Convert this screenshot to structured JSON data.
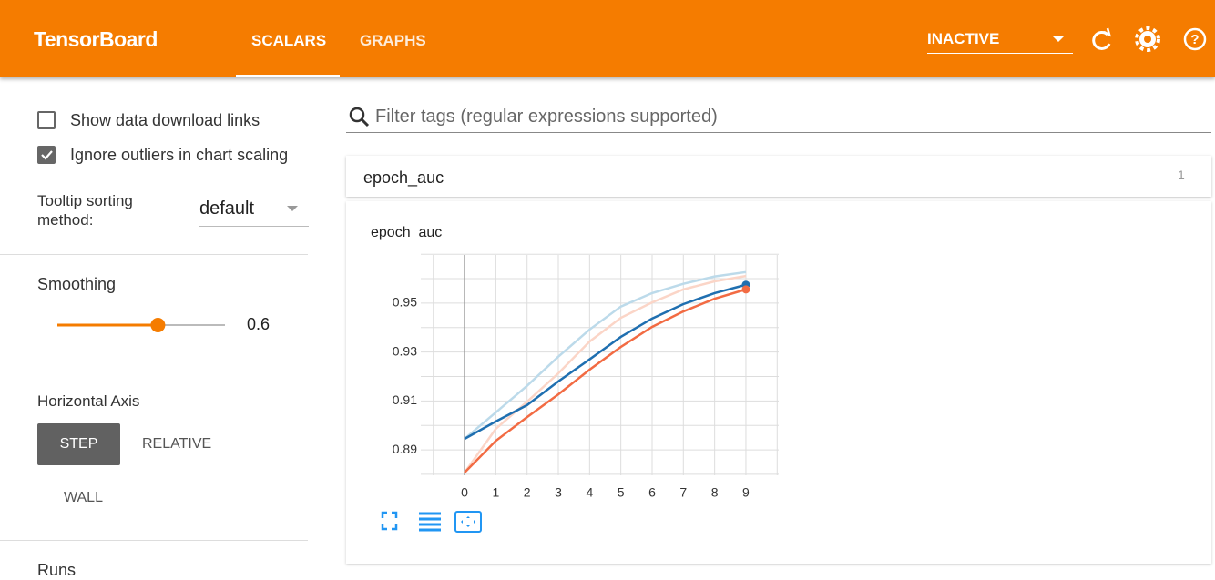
{
  "header": {
    "brand": "TensorBoard",
    "tabs": [
      "SCALARS",
      "GRAPHS"
    ],
    "status": "INACTIVE"
  },
  "sidebar": {
    "download_links": "Show data download links",
    "ignore_outliers": "Ignore outliers in chart scaling",
    "tooltip_label": "Tooltip sorting method:",
    "tooltip_value": "default",
    "smoothing_label": "Smoothing",
    "smoothing": 0.6,
    "axis_label": "Horizontal Axis",
    "axis_options": [
      "STEP",
      "RELATIVE",
      "WALL"
    ],
    "runs_label": "Runs"
  },
  "filter": {
    "placeholder": "Filter tags (regular expressions supported)"
  },
  "card": {
    "title": "epoch_auc",
    "count": 1
  },
  "chart_data": {
    "type": "line",
    "title": "epoch_auc",
    "x": [
      0,
      1,
      2,
      3,
      4,
      5,
      6,
      7,
      8,
      9
    ],
    "series": [
      {
        "color": "#bcdaea",
        "values": [
          0.8945,
          0.9053,
          0.9162,
          0.9281,
          0.9392,
          0.9486,
          0.9541,
          0.9579,
          0.9609,
          0.9627
        ]
      },
      {
        "color": "#fbd5c7",
        "values": [
          0.8807,
          0.8986,
          0.9097,
          0.9213,
          0.9343,
          0.944,
          0.9503,
          0.9556,
          0.9589,
          0.9611
        ]
      },
      {
        "color": "#1f6fb0",
        "values": [
          0.8945,
          0.9016,
          0.9083,
          0.918,
          0.927,
          0.9362,
          0.9437,
          0.9496,
          0.9541,
          0.9575
        ]
      },
      {
        "color": "#f26b43",
        "values": [
          0.8807,
          0.8937,
          0.9034,
          0.9127,
          0.9228,
          0.9321,
          0.9403,
          0.9466,
          0.9518,
          0.9556
        ]
      }
    ],
    "xlim": [
      -1.4,
      10.05
    ],
    "ylim": [
      0.8796,
      0.9697
    ],
    "xticks": [
      0,
      1,
      2,
      3,
      4,
      5,
      6,
      7,
      8,
      9
    ],
    "yticks": [
      0.89,
      0.91,
      0.93,
      0.95
    ],
    "xgrid": [
      -1,
      0,
      1,
      2,
      3,
      4,
      5,
      6,
      7,
      8,
      9,
      10
    ],
    "ygrid": [
      0.88,
      0.89,
      0.9,
      0.91,
      0.92,
      0.93,
      0.94,
      0.95,
      0.96,
      0.97
    ],
    "grid": true
  }
}
